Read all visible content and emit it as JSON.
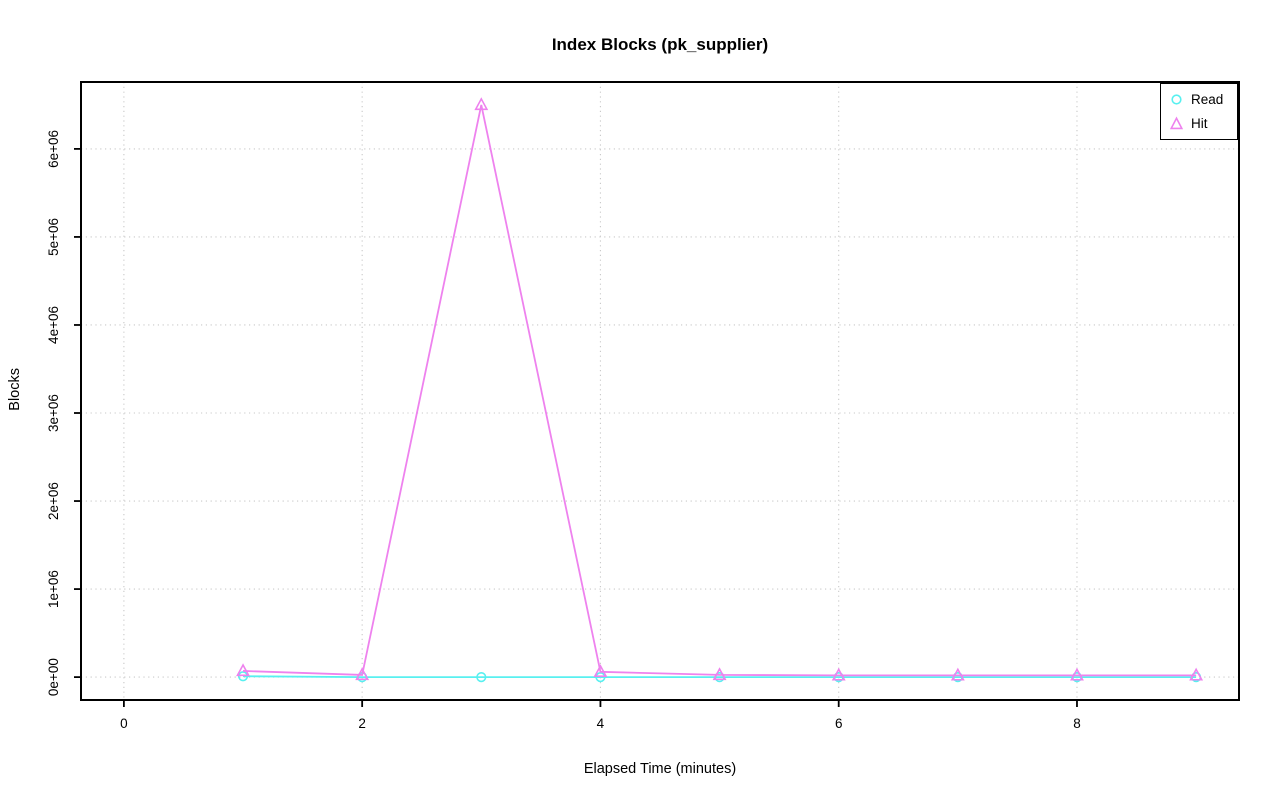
{
  "figure": {
    "title": "Index Blocks (pk_supplier)",
    "xlabel": "Elapsed Time (minutes)",
    "ylabel": "Blocks"
  },
  "legend": {
    "position": "top-right",
    "items": [
      {
        "label": "Read",
        "marker": "circle",
        "color": "#58F0F0"
      },
      {
        "label": "Hit",
        "marker": "triangle",
        "color": "#EE82EE"
      }
    ]
  },
  "colors": {
    "background": "#FFFFFF",
    "axis": "#000000",
    "grid": "#C9C9C9",
    "read_series": "#58F0F0",
    "hit_series": "#EE82EE"
  },
  "chart_data": {
    "type": "line",
    "title": "Index Blocks (pk_supplier)",
    "xlabel": "Elapsed Time (minutes)",
    "ylabel": "Blocks",
    "x": [
      1,
      2,
      3,
      4,
      5,
      6,
      7,
      8,
      9
    ],
    "series": [
      {
        "name": "Read",
        "marker": "circle",
        "color": "#58F0F0",
        "values": [
          10000,
          0,
          0,
          0,
          0,
          0,
          0,
          0,
          0
        ]
      },
      {
        "name": "Hit",
        "marker": "triangle",
        "color": "#EE82EE",
        "values": [
          70000,
          25000,
          6500000,
          60000,
          25000,
          20000,
          20000,
          20000,
          20000
        ]
      }
    ],
    "xlim": [
      0,
      9
    ],
    "ylim": [
      0,
      6500000
    ],
    "x_ticks": [
      {
        "value": 0,
        "label": "0"
      },
      {
        "value": 2,
        "label": "2"
      },
      {
        "value": 4,
        "label": "4"
      },
      {
        "value": 6,
        "label": "6"
      },
      {
        "value": 8,
        "label": "8"
      }
    ],
    "y_ticks": [
      {
        "value": 0,
        "label": "0e+00"
      },
      {
        "value": 1000000,
        "label": "1e+06"
      },
      {
        "value": 2000000,
        "label": "2e+06"
      },
      {
        "value": 3000000,
        "label": "3e+06"
      },
      {
        "value": 4000000,
        "label": "4e+06"
      },
      {
        "value": 5000000,
        "label": "5e+06"
      },
      {
        "value": 6000000,
        "label": "6e+06"
      }
    ],
    "grid": true,
    "grid_style": "dotted",
    "legend_position": "top-right"
  }
}
